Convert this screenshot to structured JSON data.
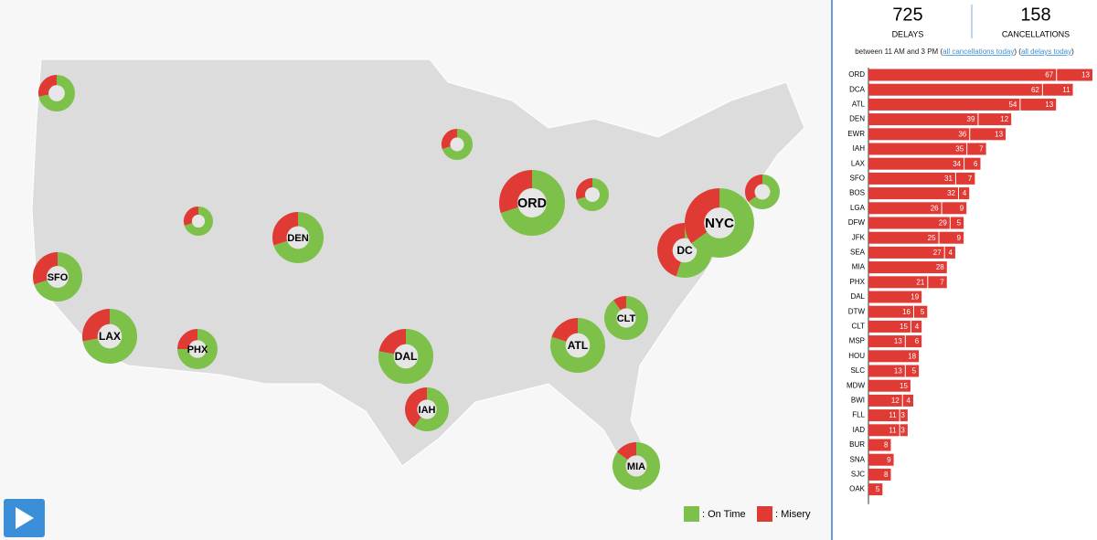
{
  "colors": {
    "on_time": "#7dc14b",
    "misery": "#e03a35"
  },
  "header": {
    "delays": {
      "value": 725,
      "label": "DELAYS"
    },
    "cancellations": {
      "value": 158,
      "label": "CANCELLATIONS"
    },
    "window": [
      "between 11 AM and 3 PM (",
      "all cancellations today",
      ") (",
      "all delays today",
      ")"
    ]
  },
  "map": {
    "airports": [
      {
        "label": null,
        "misery": 28
      },
      {
        "label": null,
        "misery": 30
      },
      {
        "label": "SFO",
        "misery": 30
      },
      {
        "label": "LAX",
        "misery": 28
      },
      {
        "label": "PHX",
        "misery": 25
      },
      {
        "label": "DEN",
        "misery": 30
      },
      {
        "label": null,
        "misery": 30
      },
      {
        "label": "DAL",
        "misery": 22
      },
      {
        "label": "IAH",
        "misery": 40
      },
      {
        "label": "ORD",
        "misery": 30
      },
      {
        "label": null,
        "misery": 30
      },
      {
        "label": "ATL",
        "misery": 20
      },
      {
        "label": "CLT",
        "misery": 10
      },
      {
        "label": "DC",
        "misery": 45
      },
      {
        "label": "NYC",
        "misery": 35
      },
      {
        "label": null,
        "misery": 35
      },
      {
        "label": "MIA",
        "misery": 15
      }
    ],
    "legend": [
      ": On Time",
      ": Misery"
    ]
  },
  "chart_data": {
    "type": "bar",
    "categories": [
      "ORD",
      "DCA",
      "ATL",
      "DEN",
      "EWR",
      "IAH",
      "LAX",
      "SFO",
      "BOS",
      "LGA",
      "DFW",
      "JFK",
      "SEA",
      "MIA",
      "PHX",
      "DAL",
      "DTW",
      "CLT",
      "MSP",
      "HOU",
      "SLC",
      "MDW",
      "BWI",
      "FLL",
      "IAD",
      "BUR",
      "SNA",
      "SJC",
      "OAK"
    ],
    "series": [
      {
        "name": "Delays",
        "color": "#e03a35",
        "values": [
          67,
          62,
          54,
          39,
          36,
          35,
          34,
          31,
          32,
          26,
          29,
          25,
          27,
          28,
          21,
          19,
          16,
          15,
          13,
          18,
          13,
          15,
          12,
          11,
          11,
          8,
          9,
          8,
          5
        ]
      },
      {
        "name": "Cancellations",
        "color": "#e03a35",
        "values": [
          13,
          11,
          13,
          12,
          13,
          7,
          6,
          7,
          4,
          9,
          5,
          9,
          4,
          null,
          7,
          null,
          5,
          4,
          6,
          null,
          5,
          null,
          4,
          3,
          3,
          null,
          null,
          null,
          null
        ]
      }
    ]
  }
}
